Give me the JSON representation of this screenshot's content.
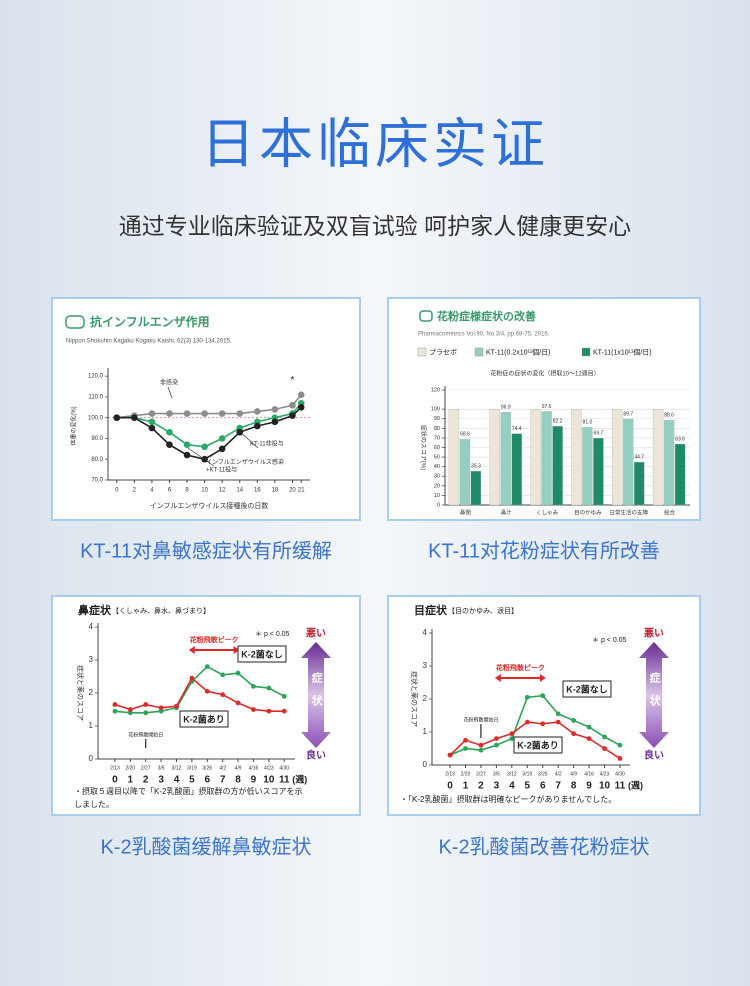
{
  "header": {
    "title": "日本临床实证",
    "subtitle": "通过专业临床验证及双盲试验 呵护家人健康更安心"
  },
  "captions": [
    "KT-11对鼻敏感症状有所缓解",
    "KT-11对花粉症状有所改善",
    "K-2乳酸菌缓解鼻敏症状",
    "K-2乳酸菌改善花粉症状"
  ],
  "chart_data": [
    {
      "type": "line",
      "title": "抗インフルエンザ作用",
      "citation": "Nippon Shokuhin Kagaku Kogaku Kaishi, 62(3) 130-134,2015.",
      "ylabel": "体重の変化(%)",
      "xlabel": "インフルエンザウイルス接種後の日数",
      "x": [
        0,
        2,
        4,
        6,
        8,
        10,
        12,
        14,
        16,
        18,
        20,
        21
      ],
      "xlim": [
        -1,
        22
      ],
      "xticks": [
        0,
        2,
        4,
        6,
        8,
        10,
        12,
        14,
        16,
        18,
        20,
        21
      ],
      "ylim": [
        70,
        122
      ],
      "yticks": [
        {
          "value": 70,
          "label": "70.0"
        },
        {
          "value": 80,
          "label": "80.0"
        },
        {
          "value": 90,
          "label": "90.0"
        },
        {
          "value": 100,
          "label": "100.0"
        },
        {
          "value": 110,
          "label": "110.0"
        },
        {
          "value": 120,
          "label": "120.0"
        }
      ],
      "grid": false,
      "series": [
        {
          "name": "非感染",
          "color": "#8c8c8c",
          "values": [
            100,
            101,
            102,
            102,
            102,
            102,
            102,
            102,
            103,
            104,
            106,
            111
          ]
        },
        {
          "name": "インフルエンザウイルス感染\n+KT-11投与",
          "color": "#2aa86a",
          "values": [
            100,
            100,
            98,
            93,
            87,
            86,
            90,
            95,
            98,
            100,
            102,
            107
          ]
        },
        {
          "name": "KT-11非投与",
          "color": "#222222",
          "values": [
            100,
            100,
            95,
            87,
            82,
            80,
            85,
            93,
            96,
            98,
            101,
            105
          ]
        }
      ],
      "annotations": {
        "significance": "*"
      }
    },
    {
      "type": "bar",
      "title": "花粉症様症状の改善",
      "citation": "Pharmacometrics Vol.90, No.3/4, pp.69-75, 2016.",
      "subtitle": "花粉症の症状の変化（摂取10〜12週目）",
      "ylabel": "症状のスコア(%)",
      "categories": [
        "鼻閉",
        "鼻汁",
        "くしゃみ",
        "目のかゆみ",
        "日常生活の支障",
        "総合"
      ],
      "ylim": [
        0,
        120
      ],
      "yticks": [
        0,
        10,
        20,
        30,
        40,
        50,
        60,
        70,
        80,
        90,
        100,
        120
      ],
      "grid": true,
      "series": [
        {
          "name": "プラセボ",
          "color": "#ece6d8",
          "values": [
            100,
            100,
            100,
            100,
            100,
            100
          ]
        },
        {
          "name": "KT-11(0.2x10¹¹個/日)",
          "color": "#93d0c2",
          "values": [
            68.6,
            96.9,
            97.6,
            81,
            89.7,
            88.6
          ],
          "value_labels": [
            "68.6",
            "96.9",
            "97.6",
            "81.0",
            "89.7",
            "88.6"
          ]
        },
        {
          "name": "KT-11(1x10¹¹個/日)",
          "color": "#1f8a68",
          "values": [
            35.3,
            74.4,
            82.2,
            69.7,
            44.7,
            63.6
          ],
          "value_labels": [
            "35.3",
            "74.4",
            "82.2",
            "69.7",
            "44.7",
            "63.6"
          ]
        }
      ]
    },
    {
      "type": "line",
      "title": "鼻症状",
      "subtitle": "【くしゃみ、鼻水、鼻づまり】",
      "ylabel": "症状と薬のスコア",
      "xunit": "(週)",
      "x": [
        0,
        1,
        2,
        3,
        4,
        5,
        6,
        7,
        8,
        9,
        10,
        11
      ],
      "dates": [
        "2/13",
        "2/20",
        "2/27",
        "3/5",
        "3/12",
        "3/19",
        "3/26",
        "4/2",
        "4/9",
        "4/16",
        "4/23",
        "4/30"
      ],
      "xlim": [
        -1.1,
        11.7
      ],
      "xticks": [
        0,
        1,
        2,
        3,
        4,
        5,
        6,
        7,
        8,
        9,
        10,
        11
      ],
      "ylim": [
        0,
        4
      ],
      "yticks": [
        0,
        1,
        2,
        3,
        4
      ],
      "grid": false,
      "series": [
        {
          "name": "K-2菌なし",
          "color": "#2ca35a",
          "values": [
            1.45,
            1.4,
            1.4,
            1.45,
            1.55,
            2.35,
            2.8,
            2.55,
            2.6,
            2.2,
            2.15,
            1.9
          ]
        },
        {
          "name": "K-2菌あり",
          "color": "#e02a2a",
          "values": [
            1.65,
            1.5,
            1.65,
            1.55,
            1.6,
            2.45,
            2.05,
            1.95,
            1.7,
            1.5,
            1.45,
            1.45
          ]
        }
      ],
      "annotations": {
        "peak": "花粉飛散ピーク",
        "p_value": "＊ p < 0.05",
        "start": "花粉飛散開始日",
        "worse": "悪い",
        "symptom": "症状",
        "better": "良い"
      },
      "footnote": [
        "・摂取５週目以降で「K-2乳酸菌」摂取群の方が低いスコアを示",
        "しました。"
      ]
    },
    {
      "type": "line",
      "title": "目症状",
      "subtitle": "【目のかゆみ、涙目】",
      "ylabel": "症状と薬のスコア",
      "xunit": "(週)",
      "x": [
        0,
        1,
        2,
        3,
        4,
        5,
        6,
        7,
        8,
        9,
        10,
        11
      ],
      "dates": [
        "2/13",
        "2/20",
        "2/27",
        "3/5",
        "3/12",
        "3/19",
        "3/26",
        "4/2",
        "4/9",
        "4/16",
        "4/23",
        "4/30"
      ],
      "xlim": [
        -1.17,
        11.65
      ],
      "xticks": [
        0,
        1,
        2,
        3,
        4,
        5,
        6,
        7,
        8,
        9,
        10,
        11
      ],
      "ylim": [
        0,
        4
      ],
      "yticks": [
        0,
        1,
        2,
        3,
        4
      ],
      "grid": false,
      "series": [
        {
          "name": "K-2菌なし",
          "color": "#2ca35a",
          "values": [
            0.3,
            0.5,
            0.45,
            0.6,
            0.8,
            2.05,
            2.1,
            1.55,
            1.35,
            1.15,
            0.85,
            0.6
          ]
        },
        {
          "name": "K-2菌あり",
          "color": "#e02a2a",
          "values": [
            0.3,
            0.75,
            0.6,
            0.8,
            0.95,
            1.3,
            1.25,
            1.3,
            0.95,
            0.8,
            0.5,
            0.2
          ]
        }
      ],
      "annotations": {
        "peak": "花粉飛散ピーク",
        "p_value": "＊ p < 0.05",
        "start": "花粉飛散開始日",
        "worse": "悪い",
        "symptom": "症状",
        "better": "良い"
      },
      "footnote": [
        "・「K-2乳酸菌」摂取群は明確なピークがありませんでした。"
      ]
    }
  ]
}
